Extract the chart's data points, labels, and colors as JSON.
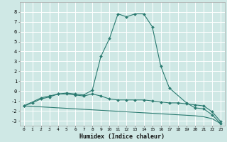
{
  "xlabel": "Humidex (Indice chaleur)",
  "bg_color": "#cfe8e5",
  "grid_color": "#ffffff",
  "line_color": "#2a7a70",
  "x_ticks": [
    0,
    1,
    2,
    3,
    4,
    5,
    6,
    7,
    8,
    9,
    10,
    11,
    12,
    13,
    14,
    15,
    16,
    17,
    18,
    19,
    20,
    21,
    22,
    23
  ],
  "ylim": [
    -3.5,
    9.0
  ],
  "xlim": [
    -0.5,
    23.5
  ],
  "yticks": [
    -3,
    -2,
    -1,
    0,
    1,
    2,
    3,
    4,
    5,
    6,
    7,
    8
  ],
  "series": [
    {
      "x": [
        0,
        1,
        2,
        3,
        4,
        5,
        6,
        7,
        8,
        9,
        10,
        11,
        12,
        13,
        14,
        15,
        16,
        17,
        18,
        19,
        20,
        21,
        22,
        23
      ],
      "y": [
        -1.5,
        -1.55,
        -1.6,
        -1.65,
        -1.7,
        -1.75,
        -1.8,
        -1.85,
        -1.9,
        -1.95,
        -2.0,
        -2.05,
        -2.1,
        -2.15,
        -2.2,
        -2.25,
        -2.3,
        -2.35,
        -2.4,
        -2.45,
        -2.5,
        -2.6,
        -2.8,
        -3.3
      ],
      "marker": false
    },
    {
      "x": [
        0,
        1,
        2,
        3,
        4,
        5,
        6,
        7,
        8,
        9,
        10,
        11,
        12,
        13,
        14,
        15,
        16,
        17,
        18,
        19,
        20,
        21,
        22,
        23
      ],
      "y": [
        -1.5,
        -1.2,
        -0.8,
        -0.6,
        -0.3,
        -0.3,
        -0.4,
        -0.5,
        -0.3,
        -0.5,
        -0.8,
        -0.9,
        -0.9,
        -0.9,
        -0.9,
        -1.0,
        -1.1,
        -1.2,
        -1.2,
        -1.3,
        -1.4,
        -1.5,
        -2.1,
        -3.1
      ],
      "marker": true
    },
    {
      "x": [
        0,
        2,
        3,
        4,
        5,
        6,
        7,
        8,
        9,
        10,
        11,
        12,
        13,
        14,
        15,
        16,
        17,
        19,
        20,
        21,
        22,
        23
      ],
      "y": [
        -1.5,
        -0.7,
        -0.5,
        -0.3,
        -0.2,
        -0.3,
        -0.4,
        0.1,
        3.5,
        5.3,
        7.8,
        7.5,
        7.8,
        7.8,
        6.5,
        2.5,
        0.3,
        -1.2,
        -1.7,
        -1.8,
        -2.4,
        -3.3
      ],
      "marker": true
    }
  ]
}
